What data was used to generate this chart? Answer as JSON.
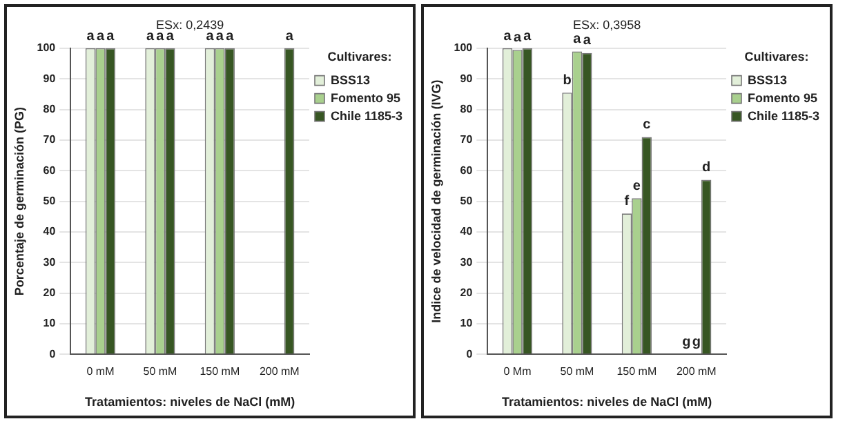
{
  "chart_data": [
    {
      "type": "bar",
      "ylabel": "Porcentaje de germinación (PG)",
      "xlabel": "Tratamientos: niveles de NaCl (mM)",
      "legend_title": "Cultivares:",
      "annotations": [
        "ESx: 0,2439"
      ],
      "categories": [
        "0 mM",
        "50 mM",
        "150 mM",
        "200 mM"
      ],
      "ylim": [
        0,
        100
      ],
      "yticks": [
        0,
        10,
        20,
        30,
        40,
        50,
        60,
        70,
        80,
        90,
        100
      ],
      "grid": "y",
      "legend": "right",
      "series": [
        {
          "name": "BSS13",
          "color": "#e2efd9",
          "values": [
            100,
            100,
            100,
            0
          ],
          "value_labels": [
            "a",
            "a",
            "a",
            null
          ]
        },
        {
          "name": "Fomento 95",
          "color": "#a9d08e",
          "values": [
            100,
            100,
            100,
            0
          ],
          "value_labels": [
            "a",
            "a",
            "a",
            null
          ]
        },
        {
          "name": "Chile 1185-3",
          "color": "#375623",
          "values": [
            100,
            100,
            100,
            100
          ],
          "value_labels": [
            "a",
            "a",
            "a",
            "a"
          ]
        }
      ]
    },
    {
      "type": "bar",
      "ylabel": "Indice de velocidad de germinación (IVG)",
      "xlabel": "Tratamientos: niveles de NaCl (mM)",
      "legend_title": "Cultivares:",
      "annotations": [
        "ESx: 0,3958"
      ],
      "categories": [
        "0 Mm",
        "50 mM",
        "150 mM",
        "200 mM"
      ],
      "ylim": [
        0,
        100
      ],
      "yticks": [
        0,
        10,
        20,
        30,
        40,
        50,
        60,
        70,
        80,
        90,
        100
      ],
      "grid": "y",
      "legend": "right",
      "series": [
        {
          "name": "BSS13",
          "color": "#e2efd9",
          "values": [
            100,
            85.5,
            46,
            0
          ],
          "value_labels": [
            "a",
            "b",
            "f",
            "g"
          ]
        },
        {
          "name": "Fomento 95",
          "color": "#a9d08e",
          "values": [
            99.5,
            99,
            51,
            0
          ],
          "value_labels": [
            "a",
            "a",
            "e",
            "g"
          ]
        },
        {
          "name": "Chile 1185-3",
          "color": "#375623",
          "values": [
            100,
            98.5,
            71,
            57
          ],
          "value_labels": [
            "a",
            "a",
            "c",
            "d"
          ]
        }
      ]
    }
  ]
}
